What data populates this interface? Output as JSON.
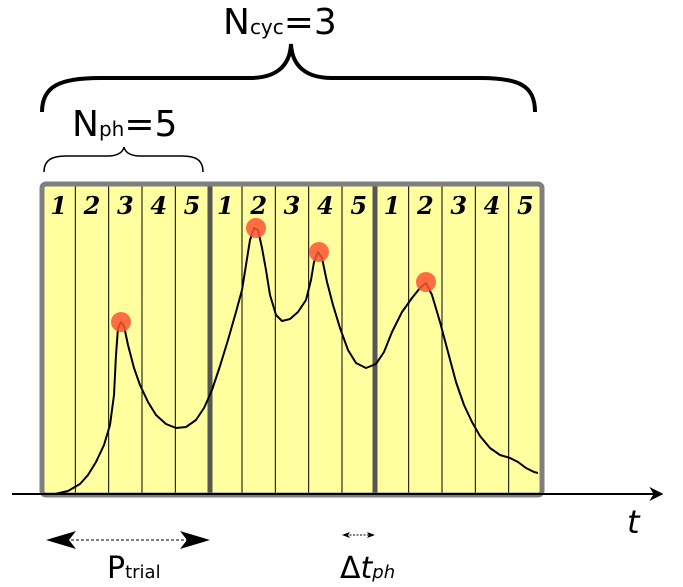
{
  "labels": {
    "ncyc_main": "N",
    "ncyc_sub": "cyc",
    "ncyc_eq": "=3",
    "nph_main": "N",
    "nph_sub": "ph",
    "nph_eq": "=5",
    "ptrial_main": "P",
    "ptrial_sub": "trial",
    "dt_delta": "Δ",
    "dt_t": "t",
    "dt_sub": "ph",
    "time_axis": "t"
  },
  "phases": [
    "1",
    "2",
    "3",
    "4",
    "5",
    "1",
    "2",
    "3",
    "4",
    "5",
    "1",
    "2",
    "3",
    "4",
    "5"
  ],
  "colors": {
    "panel_fill": "#ffff9f",
    "panel_border": "#7f7f7f",
    "cycle_divider": "#555555",
    "peak_marker": "#ff5533"
  }
}
